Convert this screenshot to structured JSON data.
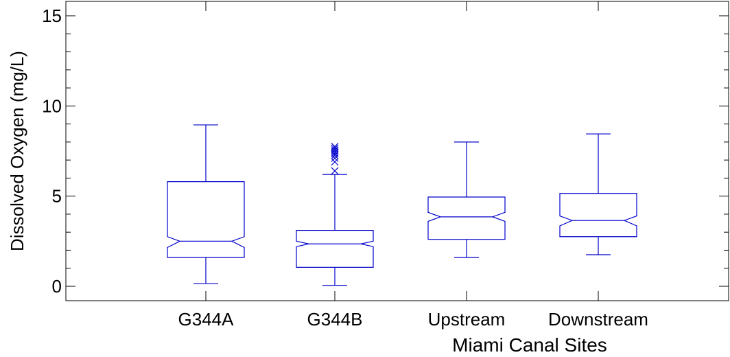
{
  "chart_data": {
    "type": "boxplot",
    "xlabel": "Miami Canal Sites",
    "ylabel": "Dissolved Oxygen (mg/L)",
    "ylim": [
      -0.8,
      15.8
    ],
    "yticks": [
      0,
      5,
      10,
      15
    ],
    "minor_ytick_step": 1,
    "grid": false,
    "notched": true,
    "box_color": "#0000cc",
    "categories": [
      "G344A",
      "G344B",
      "Upstream",
      "Downstream"
    ],
    "boxes": [
      {
        "name": "G344A",
        "whisker_low": 0.15,
        "q1": 1.6,
        "median": 2.5,
        "q3": 5.8,
        "whisker_high": 8.95,
        "notch_low": 2.15,
        "notch_high": 2.75,
        "outliers": []
      },
      {
        "name": "G344B",
        "whisker_low": 0.05,
        "q1": 1.05,
        "median": 2.35,
        "q3": 3.1,
        "whisker_high": 6.2,
        "notch_low": 2.2,
        "notch_high": 2.5,
        "outliers": [
          6.4,
          6.9,
          7.1,
          7.25,
          7.35,
          7.45,
          7.55,
          7.65,
          7.75
        ]
      },
      {
        "name": "Upstream",
        "whisker_low": 1.6,
        "q1": 2.6,
        "median": 3.85,
        "q3": 4.95,
        "whisker_high": 8.0,
        "notch_low": 3.6,
        "notch_high": 4.1,
        "outliers": []
      },
      {
        "name": "Downstream",
        "whisker_low": 1.75,
        "q1": 2.75,
        "median": 3.65,
        "q3": 5.15,
        "whisker_high": 8.45,
        "notch_low": 3.35,
        "notch_high": 3.9,
        "outliers": []
      }
    ]
  }
}
